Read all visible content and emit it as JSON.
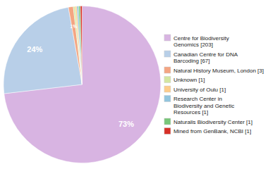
{
  "chart_data": {
    "type": "pie",
    "categories": [
      "Centre for Biodiversity\nGenomics [203]",
      "Canadian Centre for DNA\nBarcoding [67]",
      "Natural History Museum, London [3]",
      "Unknown [1]",
      "University of Oulu [1]",
      "Research Center in\nBiodiversity and Genetic\nResources [1]",
      "Naturalis Biodiversity Center [1]",
      "Mined from GenBank, NCBI [1]"
    ],
    "values": [
      73,
      24,
      1,
      0.36,
      0.36,
      0.36,
      0.36,
      0.36
    ],
    "value_labels": [
      "73%",
      "24%",
      "1%",
      null,
      null,
      null,
      null,
      null
    ],
    "colors": [
      "#d8b4e2",
      "#b8cfe8",
      "#f4a582",
      "#d4e6a0",
      "#fdcc8a",
      "#92c5de",
      "#78c679",
      "#d73027"
    ],
    "legend": "right"
  }
}
